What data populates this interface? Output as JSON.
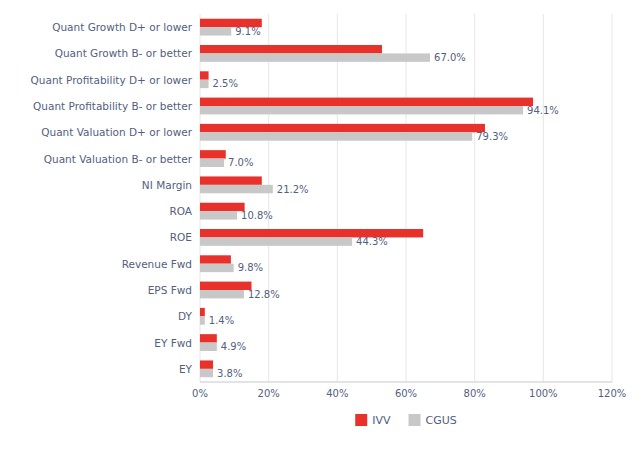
{
  "chart_data": {
    "type": "bar",
    "orientation": "horizontal",
    "categories": [
      "EY",
      "EY Fwd",
      "DY",
      "EPS Fwd",
      "Revenue Fwd",
      "ROE",
      "ROA",
      "NI Margin",
      "Quant Valuation B- or better",
      "Quant Valuation D+ or lower",
      "Quant Profitability B- or better",
      "Quant Profitability D+ or lower",
      "Quant Growth B- or better",
      "Quant Growth D+ or lower"
    ],
    "series": [
      {
        "name": "IVV",
        "color": "#e8312a",
        "values": [
          3.8,
          4.9,
          1.4,
          15.0,
          9.0,
          65.0,
          13.0,
          18.0,
          7.5,
          83.0,
          97.0,
          2.5,
          53.0,
          18.0
        ]
      },
      {
        "name": "CGUS",
        "color": "#c8c8c8",
        "values": [
          3.8,
          4.9,
          1.4,
          12.8,
          9.8,
          44.3,
          10.8,
          21.2,
          7.0,
          79.3,
          94.1,
          2.5,
          67.0,
          9.1
        ],
        "data_labels": true,
        "value_labels": [
          "3.8%",
          "4.9%",
          "1.4%",
          "12.8%",
          "9.8%",
          "44.3%",
          "10.8%",
          "21.2%",
          "7.0%",
          "79.3%",
          "94.1%",
          "2.5%",
          "67.0%",
          "9.1%"
        ]
      }
    ],
    "xlim": [
      0,
      120
    ],
    "xticks": [
      {
        "value": 0,
        "label": "0%"
      },
      {
        "value": 20,
        "label": "20%"
      },
      {
        "value": 40,
        "label": "40%"
      },
      {
        "value": 60,
        "label": "60%"
      },
      {
        "value": 80,
        "label": "80%"
      },
      {
        "value": 100,
        "label": "100%"
      },
      {
        "value": 120,
        "label": "120%"
      }
    ],
    "grid": true,
    "legend": "bottom"
  }
}
